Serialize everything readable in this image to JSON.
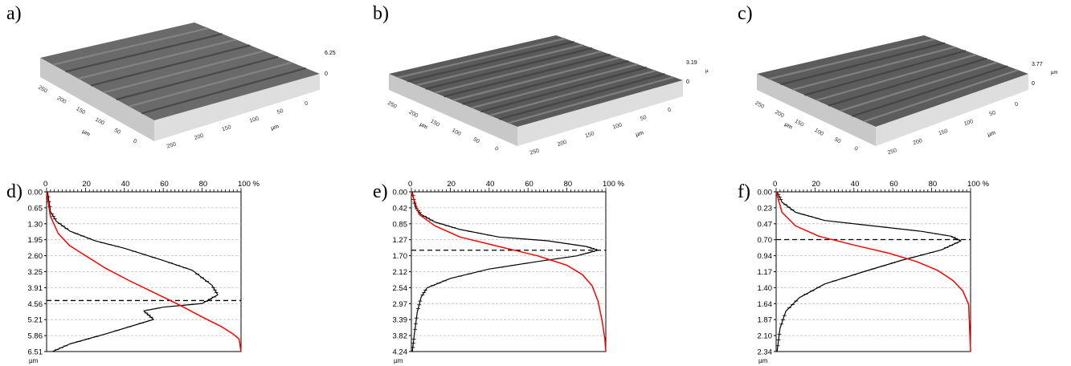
{
  "panel_labels": [
    "a)",
    "b)",
    "c)",
    "d)",
    "e)",
    "f)"
  ],
  "surfaces": [
    {
      "max_label": "6.25",
      "zero_label": "0",
      "unit": "",
      "x_ticks": [
        "0",
        "50",
        "100",
        "150",
        "200",
        "250"
      ],
      "y_ticks": [
        "0",
        "50",
        "100",
        "150",
        "200",
        "250"
      ],
      "x_unit": "µm",
      "y_unit": "µm"
    },
    {
      "max_label": "3.19",
      "zero_label": "0",
      "unit": "µm",
      "x_ticks": [
        "0",
        "50",
        "100",
        "150",
        "200",
        "250"
      ],
      "y_ticks": [
        "0",
        "50",
        "100",
        "150",
        "200",
        "250"
      ],
      "x_unit": "µm",
      "y_unit": "µm"
    },
    {
      "max_label": "3.77",
      "zero_label": "0",
      "unit": "µm",
      "x_ticks": [
        "0",
        "50",
        "100",
        "150",
        "200",
        "250"
      ],
      "y_ticks": [
        "0",
        "50",
        "100",
        "150",
        "200",
        "250"
      ],
      "x_unit": "µm",
      "y_unit": "µm"
    }
  ],
  "chart_data": [
    {
      "type": "line",
      "x_ticks": [
        "0",
        "20",
        "40",
        "60",
        "80",
        "100 %"
      ],
      "y_ticks": [
        "0.00",
        "0.65",
        "1.30",
        "1.95",
        "2.60",
        "3.25",
        "3.91",
        "4.56",
        "5.21",
        "5.86",
        "6.51"
      ],
      "ylabel": "µm",
      "xlim": [
        0,
        100
      ],
      "ylim": [
        0,
        6.51
      ],
      "dashed_depth": 4.43,
      "series": [
        {
          "color": "#000000",
          "x": [
            0.5,
            2,
            5,
            12,
            25,
            40,
            60,
            75,
            85,
            88,
            80,
            60,
            50,
            55,
            30,
            12,
            3
          ],
          "y": [
            0.0,
            0.8,
            1.2,
            1.6,
            2.0,
            2.3,
            2.8,
            3.2,
            3.8,
            4.2,
            4.55,
            4.7,
            4.85,
            5.2,
            5.8,
            6.2,
            6.51
          ]
        },
        {
          "color": "#ff0000",
          "x": [
            0,
            2,
            6,
            12,
            20,
            30,
            42,
            55,
            68,
            80,
            90,
            96,
            99,
            100
          ],
          "y": [
            0.0,
            1.0,
            1.7,
            2.2,
            2.6,
            3.1,
            3.6,
            4.1,
            4.6,
            5.1,
            5.5,
            5.8,
            6.0,
            6.51
          ]
        }
      ]
    },
    {
      "type": "line",
      "x_ticks": [
        "0",
        "20",
        "40",
        "60",
        "80",
        "100 %"
      ],
      "y_ticks": [
        "0.00",
        "0.42",
        "0.85",
        "1.27",
        "1.70",
        "2.12",
        "2.54",
        "2.97",
        "3.39",
        "3.82",
        "4.24"
      ],
      "ylabel": "µm",
      "xlim": [
        0,
        100
      ],
      "ylim": [
        0,
        4.24
      ],
      "dashed_depth": 1.55,
      "series": [
        {
          "color": "#000000",
          "x": [
            0.5,
            2,
            5,
            12,
            25,
            45,
            70,
            90,
            96,
            85,
            65,
            40,
            20,
            8,
            5,
            3,
            1.5,
            0.5
          ],
          "y": [
            0.0,
            0.4,
            0.6,
            0.8,
            1.0,
            1.2,
            1.3,
            1.45,
            1.55,
            1.7,
            1.85,
            2.05,
            2.3,
            2.55,
            2.8,
            3.2,
            3.8,
            4.24
          ]
        },
        {
          "color": "#ff0000",
          "x": [
            0,
            4,
            12,
            25,
            45,
            65,
            80,
            88,
            93,
            96,
            98,
            99.5,
            100
          ],
          "y": [
            0.0,
            0.6,
            0.9,
            1.2,
            1.45,
            1.7,
            1.95,
            2.2,
            2.5,
            2.9,
            3.4,
            3.9,
            4.24
          ]
        }
      ]
    },
    {
      "type": "line",
      "x_ticks": [
        "0",
        "20",
        "40",
        "60",
        "80",
        "100 %"
      ],
      "y_ticks": [
        "0.00",
        "0.23",
        "0.47",
        "0.70",
        "0.94",
        "1.17",
        "1.40",
        "1.64",
        "1.87",
        "2.10",
        "2.34"
      ],
      "ylabel": "µm",
      "xlim": [
        0,
        100
      ],
      "ylim": [
        0,
        2.34
      ],
      "dashed_depth": 0.7,
      "series": [
        {
          "color": "#000000",
          "x": [
            0.5,
            3,
            10,
            25,
            50,
            75,
            90,
            95,
            85,
            65,
            45,
            25,
            12,
            5,
            2,
            0.5
          ],
          "y": [
            0.0,
            0.15,
            0.3,
            0.42,
            0.5,
            0.58,
            0.65,
            0.72,
            0.85,
            1.0,
            1.17,
            1.35,
            1.55,
            1.75,
            2.0,
            2.34
          ]
        },
        {
          "color": "#ff0000",
          "x": [
            0,
            3,
            10,
            22,
            40,
            58,
            72,
            83,
            91,
            96,
            99,
            100
          ],
          "y": [
            0.0,
            0.3,
            0.5,
            0.65,
            0.78,
            0.9,
            1.02,
            1.15,
            1.3,
            1.45,
            1.65,
            2.34
          ]
        }
      ]
    }
  ]
}
